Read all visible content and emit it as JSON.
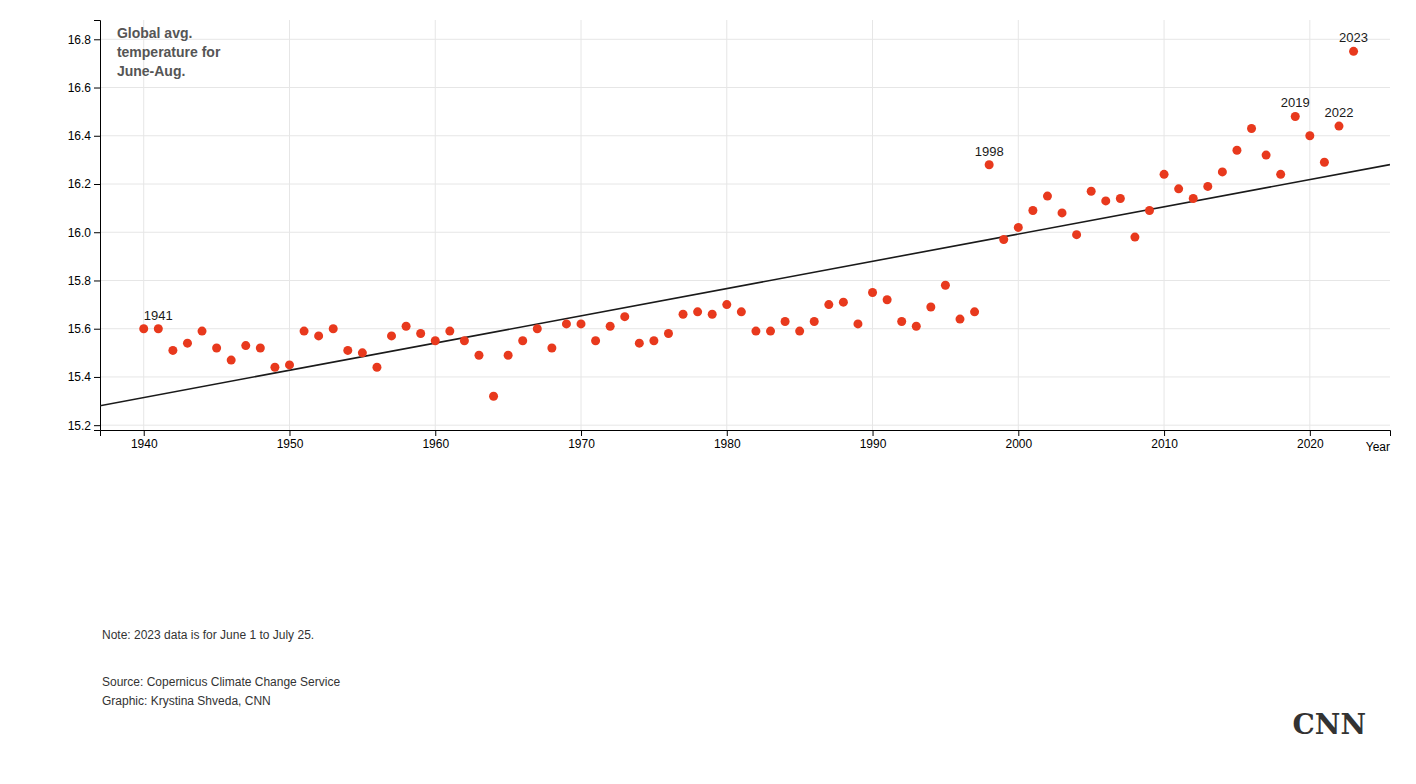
{
  "chart_data": {
    "type": "scatter",
    "title": "Global avg.\ntemperature for\nJune-Aug.",
    "x_label": "Year",
    "series": [
      {
        "type": "scatter",
        "color": "#e8391d",
        "x": [
          1940,
          1941,
          1942,
          1943,
          1944,
          1945,
          1946,
          1947,
          1948,
          1949,
          1950,
          1951,
          1952,
          1953,
          1954,
          1955,
          1956,
          1957,
          1958,
          1959,
          1960,
          1961,
          1962,
          1963,
          1964,
          1965,
          1966,
          1967,
          1968,
          1969,
          1970,
          1971,
          1972,
          1973,
          1974,
          1975,
          1976,
          1977,
          1978,
          1979,
          1980,
          1981,
          1982,
          1983,
          1984,
          1985,
          1986,
          1987,
          1988,
          1989,
          1990,
          1991,
          1992,
          1993,
          1994,
          1995,
          1996,
          1997,
          1998,
          1999,
          2000,
          2001,
          2002,
          2003,
          2004,
          2005,
          2006,
          2007,
          2008,
          2009,
          2010,
          2011,
          2012,
          2013,
          2014,
          2015,
          2016,
          2017,
          2018,
          2019,
          2020,
          2021,
          2022,
          2023
        ],
        "values": [
          15.6,
          15.6,
          15.51,
          15.54,
          15.59,
          15.52,
          15.47,
          15.53,
          15.52,
          15.44,
          15.45,
          15.59,
          15.57,
          15.6,
          15.51,
          15.5,
          15.44,
          15.57,
          15.61,
          15.58,
          15.55,
          15.59,
          15.55,
          15.49,
          15.32,
          15.49,
          15.55,
          15.6,
          15.52,
          15.62,
          15.62,
          15.55,
          15.61,
          15.65,
          15.54,
          15.55,
          15.58,
          15.66,
          15.67,
          15.66,
          15.7,
          15.67,
          15.59,
          15.59,
          15.63,
          15.59,
          15.63,
          15.7,
          15.71,
          15.62,
          15.75,
          15.72,
          15.63,
          15.61,
          15.69,
          15.78,
          15.64,
          15.67,
          16.28,
          15.97,
          16.02,
          16.09,
          16.15,
          16.08,
          15.99,
          16.17,
          16.13,
          16.14,
          15.98,
          16.09,
          16.24,
          16.18,
          16.14,
          16.19,
          16.25,
          16.34,
          16.43,
          16.32,
          16.24,
          16.48,
          16.4,
          16.29,
          16.44,
          16.75
        ]
      },
      {
        "type": "line",
        "color": "#1a1a1a",
        "x": [
          1937,
          2025.5
        ],
        "values": [
          15.280688,
          16.280567
        ]
      }
    ],
    "annotations": [
      {
        "text": "1941",
        "x": 1941,
        "y": 15.6
      },
      {
        "text": "1998",
        "x": 1998,
        "y": 16.28
      },
      {
        "text": "2019",
        "x": 2019,
        "y": 16.48
      },
      {
        "text": "2022",
        "x": 2022,
        "y": 16.44
      },
      {
        "text": "2023",
        "x": 2023,
        "y": 16.75
      }
    ],
    "footnotes": [
      "Note: 2023 data is for June 1 to July 25.",
      "Source: Copernicus Climate Change Service\nGraphic: Krystina Shveda, CNN"
    ],
    "credit": "CNN",
    "xlim": [
      1937,
      2025.5
    ],
    "ylim": [
      15.18,
      16.88
    ],
    "xticks": [
      1940,
      1950,
      1960,
      1970,
      1980,
      1990,
      2000,
      2010,
      2020
    ],
    "yticks": [
      15.2,
      15.4,
      15.6,
      15.8,
      {
        "value": 16.0,
        "label": "16.0"
      },
      16.2,
      16.4,
      16.6,
      16.8
    ],
    "grid": true
  }
}
